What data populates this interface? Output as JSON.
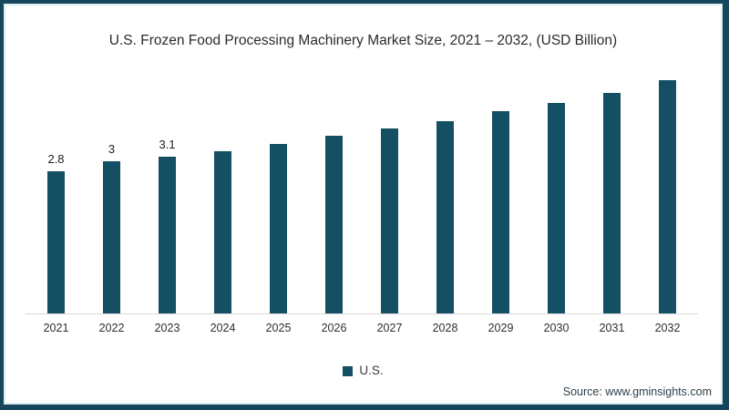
{
  "frame": {
    "border_color": "#16455c",
    "inner_line_color": "#d8edf4",
    "background": "#ffffff"
  },
  "chart_data": {
    "type": "bar",
    "title": "U.S. Frozen Food Processing Machinery Market Size, 2021 – 2032, (USD Billion)",
    "categories": [
      "2021",
      "2022",
      "2023",
      "2024",
      "2025",
      "2026",
      "2027",
      "2028",
      "2029",
      "2030",
      "2031",
      "2032"
    ],
    "values": [
      2.8,
      3,
      3.1,
      3.2,
      3.35,
      3.5,
      3.65,
      3.8,
      4.0,
      4.15,
      4.35,
      4.6
    ],
    "data_labels": [
      "2.8",
      "3",
      "3.1",
      "",
      "",
      "",
      "",
      "",
      "",
      "",
      "",
      ""
    ],
    "xlabel": "",
    "ylabel": "",
    "ylim": [
      0,
      5
    ],
    "grid": false,
    "yaxis_visible": false,
    "axis_line_color": "#d9d9d9",
    "bar_color": "#144f63",
    "legend_position": "bottom",
    "legend": [
      {
        "label": "U.S.",
        "color": "#144f63"
      }
    ]
  },
  "footer": {
    "source": "Source: www.gminsights.com"
  }
}
